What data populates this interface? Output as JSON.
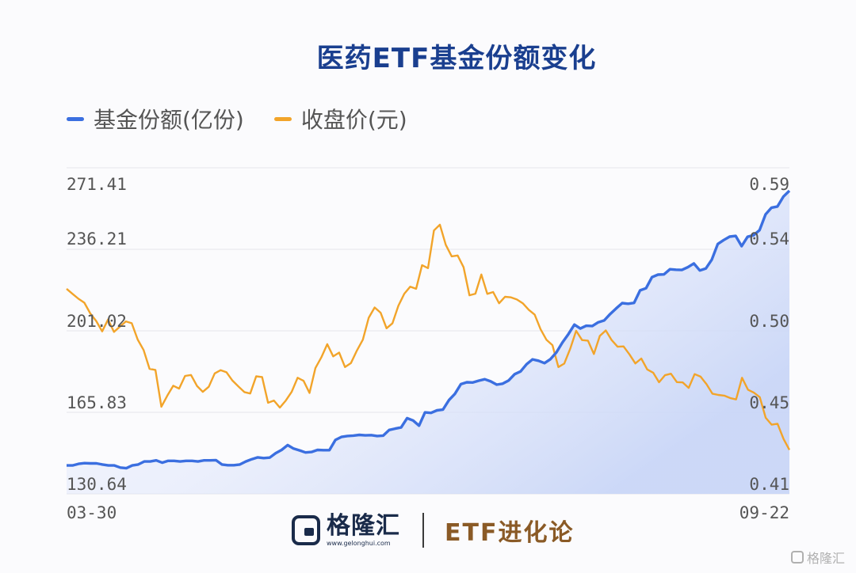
{
  "chart_data": {
    "type": "line",
    "title": "医药ETF基金份额变化",
    "x_start_label": "03-30",
    "x_end_label": "09-22",
    "left_axis": {
      "ticks": [
        "271.41",
        "236.21",
        "201.02",
        "165.83",
        "130.64"
      ],
      "ylim": [
        130.64,
        271.41
      ]
    },
    "right_axis": {
      "ticks": [
        "0.59",
        "0.54",
        "0.50",
        "0.45",
        "0.41"
      ],
      "ylim": [
        0.41,
        0.59
      ]
    },
    "series": [
      {
        "name": "基金份额(亿份)",
        "color": "#3b6fe0",
        "axis": "left",
        "area_fill": true,
        "values": [
          142.9,
          142.9,
          143.6,
          143.9,
          143.8,
          143.8,
          143.3,
          142.9,
          142.9,
          142.0,
          141.7,
          142.9,
          143.3,
          144.6,
          144.6,
          145.1,
          144.1,
          144.9,
          144.9,
          144.6,
          144.9,
          144.9,
          144.6,
          145.1,
          145.1,
          145.2,
          143.3,
          143.0,
          143.0,
          143.3,
          144.6,
          145.6,
          146.4,
          146.1,
          146.3,
          148.2,
          149.6,
          151.7,
          150.2,
          149.4,
          148.5,
          148.7,
          149.6,
          149.5,
          149.5,
          153.9,
          155.2,
          155.6,
          155.8,
          156.1,
          155.9,
          156.0,
          155.6,
          155.8,
          158.2,
          158.8,
          159.3,
          163.3,
          162.3,
          160.1,
          165.8,
          165.6,
          166.7,
          167.0,
          171.1,
          173.8,
          178.0,
          178.8,
          178.7,
          179.5,
          180.1,
          179.2,
          177.8,
          178.2,
          179.6,
          182.3,
          183.5,
          186.6,
          188.7,
          188.1,
          187.1,
          188.8,
          191.7,
          196.0,
          199.6,
          203.7,
          202.0,
          203.2,
          203.1,
          204.7,
          205.5,
          208.3,
          210.7,
          213.0,
          212.7,
          213.1,
          218.5,
          219.4,
          224.2,
          225.3,
          225.4,
          227.6,
          227.4,
          227.3,
          228.5,
          230.1,
          227.1,
          227.9,
          231.7,
          238.5,
          240.2,
          241.7,
          242.0,
          237.6,
          241.6,
          242.3,
          244.5,
          251.3,
          254.2,
          254.7,
          259.0,
          261.5
        ]
      },
      {
        "name": "收盘价(元)",
        "color": "#f2a42a",
        "axis": "right",
        "area_fill": false,
        "values": [
          0.5232,
          0.5204,
          0.5177,
          0.5155,
          0.5096,
          0.5054,
          0.4997,
          0.5062,
          0.4994,
          0.5023,
          0.5052,
          0.5042,
          0.4952,
          0.4894,
          0.479,
          0.4784,
          0.4581,
          0.4642,
          0.4697,
          0.4681,
          0.4751,
          0.4756,
          0.4696,
          0.4663,
          0.4691,
          0.4765,
          0.4783,
          0.4771,
          0.4725,
          0.4693,
          0.4662,
          0.4654,
          0.4749,
          0.4745,
          0.4603,
          0.4615,
          0.4576,
          0.4615,
          0.4664,
          0.4741,
          0.4724,
          0.4657,
          0.4795,
          0.4853,
          0.4926,
          0.4859,
          0.488,
          0.48,
          0.4822,
          0.4891,
          0.4951,
          0.5072,
          0.5129,
          0.51,
          0.5014,
          0.5041,
          0.5138,
          0.5205,
          0.5244,
          0.5232,
          0.5362,
          0.5346,
          0.5554,
          0.5586,
          0.5475,
          0.5411,
          0.5416,
          0.5351,
          0.5196,
          0.5205,
          0.5311,
          0.5204,
          0.5214,
          0.5152,
          0.5188,
          0.5185,
          0.5173,
          0.5152,
          0.5116,
          0.5089,
          0.5009,
          0.495,
          0.4921,
          0.48,
          0.4819,
          0.4901,
          0.5,
          0.4949,
          0.4946,
          0.4872,
          0.4972,
          0.5002,
          0.4949,
          0.4912,
          0.4914,
          0.487,
          0.482,
          0.4847,
          0.4787,
          0.4769,
          0.4716,
          0.4755,
          0.4763,
          0.4717,
          0.4715,
          0.4685,
          0.4761,
          0.4747,
          0.4706,
          0.4653,
          0.4646,
          0.4642,
          0.4629,
          0.4621,
          0.4741,
          0.4675,
          0.4659,
          0.4634,
          0.452,
          0.4482,
          0.4487,
          0.4404,
          0.4343
        ]
      }
    ]
  },
  "brand": {
    "name": "格隆汇",
    "url": "www.gelonghui.com",
    "section": "ETF进化论"
  },
  "watermark": "格隆汇"
}
